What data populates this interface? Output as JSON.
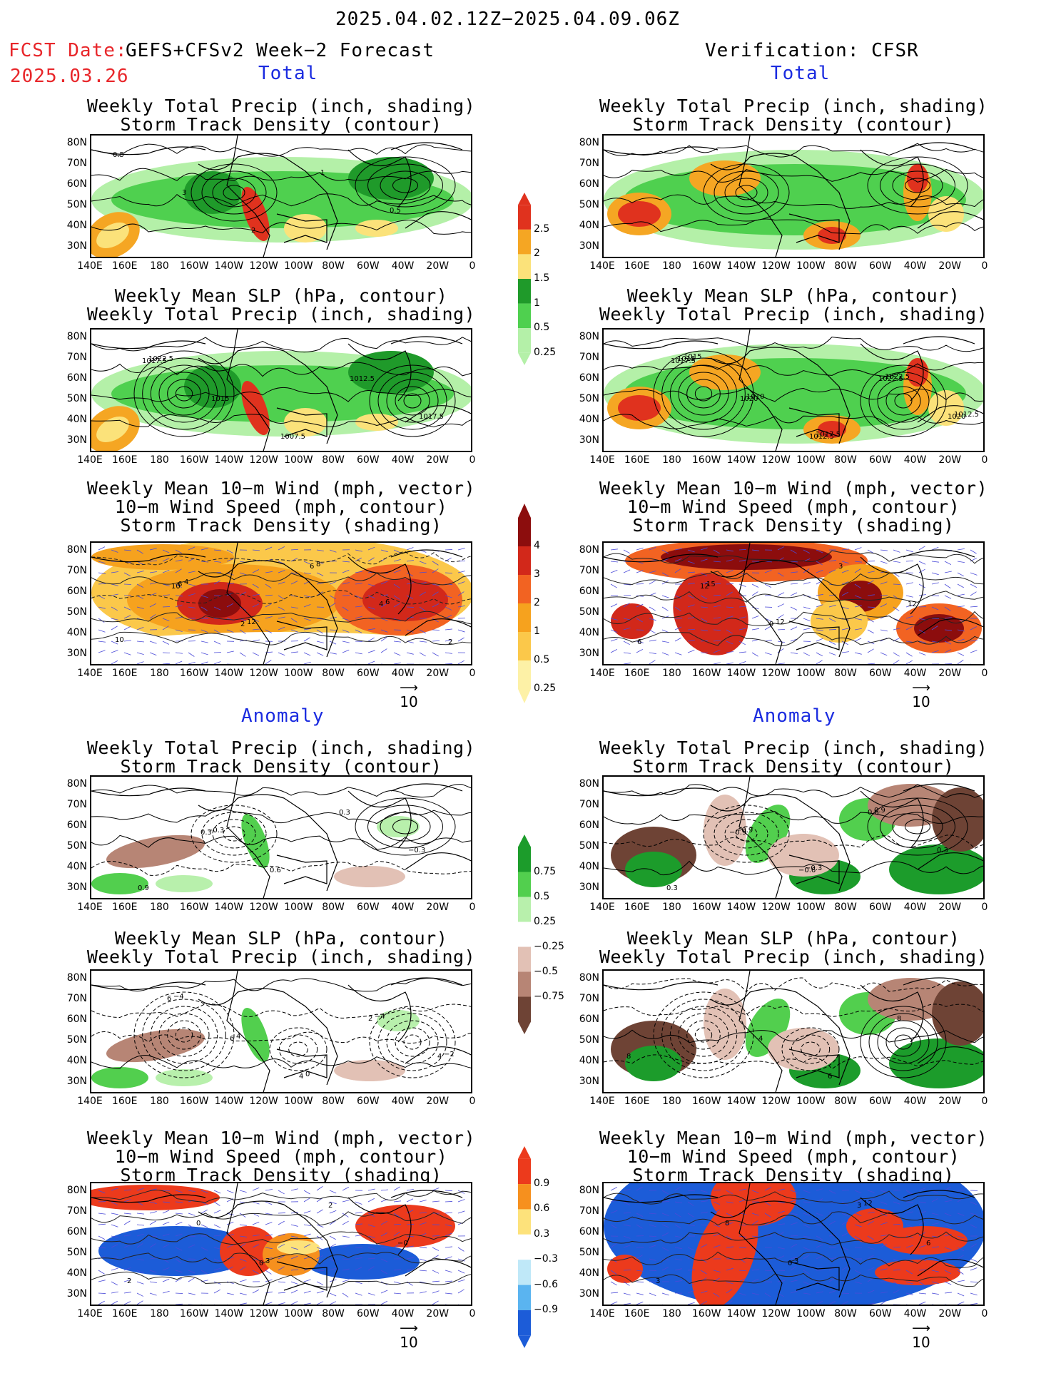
{
  "header": {
    "date_range": "2025.04.02.12Z−2025.04.09.06Z",
    "fcst_label": "FCST Date:",
    "fcst_date": "2025.03.26",
    "forecast_title": "GEFS+CFSv2 Week−2 Forecast",
    "verification_title": "Verification: CFSR"
  },
  "sections": {
    "total": "Total",
    "anomaly": "Anomaly"
  },
  "titles": {
    "precip_storm": "Weekly Total Precip (inch, shading)\nStorm Track Density (contour)",
    "slp_precip": "Weekly Mean SLP (hPa, contour)\nWeekly Total Precip (inch, shading)",
    "wind_storm": "Weekly Mean 10−m Wind (mph, vector)\n10−m Wind Speed (mph, contour)\nStorm Track Density (shading)"
  },
  "axes": {
    "lat_ticks": [
      "80N",
      "70N",
      "60N",
      "50N",
      "40N",
      "30N"
    ],
    "lon_ticks": [
      "140E",
      "160E",
      "180",
      "160W",
      "140W",
      "120W",
      "100W",
      "80W",
      "60W",
      "40W",
      "20W",
      "0"
    ]
  },
  "vector_ref": "10",
  "colorbars": {
    "precip_total": {
      "labels": [
        "2.5",
        "2",
        "1.5",
        "1",
        "0.5",
        "0.25"
      ],
      "colors": [
        "#e0321e",
        "#f5a623",
        "#fbe27a",
        "#1f9a2a",
        "#4fd04f",
        "#b4f0a8"
      ]
    },
    "storm_total": {
      "labels": [
        "4",
        "3",
        "2",
        "1",
        "0.5",
        "0.25"
      ],
      "colors": [
        "#8c0d0d",
        "#d2281a",
        "#f26322",
        "#f6a21e",
        "#fbc84a",
        "#fdf1a6"
      ]
    },
    "precip_anom": {
      "labels": [
        "0.75",
        "0.5",
        "0.25",
        "−0.25",
        "−0.5",
        "−0.75"
      ],
      "colors": [
        "#1c9c2b",
        "#52cf4e",
        "#b8f0ac",
        "#ffffff",
        "#e2c1b5",
        "#b78575",
        "#6e4335"
      ]
    },
    "storm_anom": {
      "labels": [
        "0.9",
        "0.6",
        "0.3",
        "−0.3",
        "−0.6",
        "−0.9"
      ],
      "colors": [
        "#ec3a1c",
        "#f6901e",
        "#fde27b",
        "#ffffff",
        "#bfe8f8",
        "#5ab4f0",
        "#1c5cd8"
      ]
    }
  },
  "panel_labels": {
    "fc_precip": [
      "0.5",
      "3",
      "2",
      "1",
      "0.5"
    ],
    "fc_slp": [
      "1017.5",
      "1015",
      "1007.5",
      "1012.5",
      "1017.5",
      "1022.5"
    ],
    "ver_slp": [
      "1017.5",
      "1020",
      "1012.5",
      "1022.5",
      "1020",
      "1015",
      "1010",
      "1017.5",
      "1022.5",
      "1012.5",
      "1015"
    ],
    "fc_wind": [
      "10",
      "2",
      "6",
      "4",
      "2",
      "6",
      "12",
      "8",
      "6",
      "10",
      "4"
    ],
    "ver_wind": [
      "12",
      "9",
      "3",
      "12",
      "6",
      "15",
      "12"
    ],
    "fc_panom": [
      "0.3",
      "0.6",
      "0.3",
      "−0.3",
      "0.9",
      "−0.3"
    ],
    "ver_panom": [
      "−0.9",
      "−0.6",
      "0.6",
      "0.3",
      "0.3",
      "−0.9",
      "−0.3",
      "0.9"
    ],
    "fc_slpanom": [
      "6",
      "4",
      "2",
      "4",
      "6",
      "4",
      "0",
      "−4",
      "−2",
      "−4"
    ],
    "ver_slpanom": [
      "4",
      "6",
      "8",
      "8"
    ],
    "fc_windanom": [
      "0",
      "2",
      "−0",
      "2",
      "0",
      "3"
    ],
    "ver_windanom": [
      "0",
      "3",
      "6",
      "3",
      "8",
      "3",
      "12"
    ]
  }
}
